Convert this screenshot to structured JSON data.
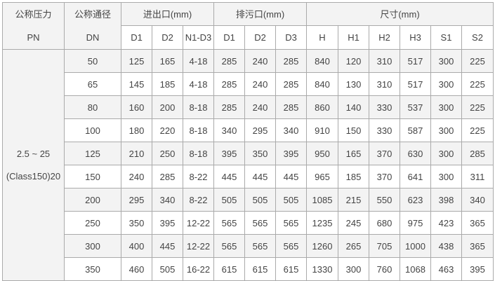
{
  "header": {
    "pn_label": "公称压力",
    "pn_sub": "PN",
    "dn_label": "公称通径",
    "dn_sub": "DN",
    "inlet_group": "进出口(mm)",
    "drain_group": "排污口(mm)",
    "size_group": "尺寸(mm)",
    "inlet_cols": [
      "D1",
      "D2",
      "N1-D3"
    ],
    "drain_cols": [
      "D1",
      "D2",
      "D3"
    ],
    "size_cols": [
      "H",
      "H1",
      "H2",
      "H3",
      "S1",
      "S2"
    ]
  },
  "pn_value": {
    "line1": "2.5 ~ 25",
    "line2": "(Class150)20"
  },
  "rows": [
    [
      "50",
      "125",
      "165",
      "4-18",
      "285",
      "240",
      "285",
      "840",
      "120",
      "310",
      "517",
      "300",
      "225"
    ],
    [
      "65",
      "145",
      "185",
      "4-18",
      "285",
      "240",
      "285",
      "840",
      "130",
      "310",
      "517",
      "300",
      "225"
    ],
    [
      "80",
      "160",
      "200",
      "8-18",
      "285",
      "240",
      "285",
      "860",
      "140",
      "330",
      "537",
      "300",
      "225"
    ],
    [
      "100",
      "180",
      "220",
      "8-18",
      "340",
      "295",
      "340",
      "910",
      "150",
      "330",
      "587",
      "300",
      "225"
    ],
    [
      "125",
      "210",
      "250",
      "8-18",
      "395",
      "350",
      "395",
      "950",
      "165",
      "370",
      "630",
      "300",
      "285"
    ],
    [
      "150",
      "240",
      "285",
      "8-22",
      "445",
      "445",
      "445",
      "965",
      "185",
      "370",
      "641",
      "300",
      "311"
    ],
    [
      "200",
      "295",
      "340",
      "8-22",
      "505",
      "505",
      "505",
      "1085",
      "215",
      "550",
      "623",
      "398",
      "340"
    ],
    [
      "250",
      "350",
      "395",
      "12-22",
      "565",
      "565",
      "565",
      "1235",
      "245",
      "680",
      "975",
      "423",
      "365"
    ],
    [
      "300",
      "400",
      "445",
      "12-22",
      "565",
      "565",
      "565",
      "1260",
      "265",
      "705",
      "1000",
      "438",
      "365"
    ],
    [
      "350",
      "460",
      "505",
      "16-22",
      "615",
      "615",
      "615",
      "1330",
      "300",
      "760",
      "1068",
      "463",
      "395"
    ]
  ]
}
